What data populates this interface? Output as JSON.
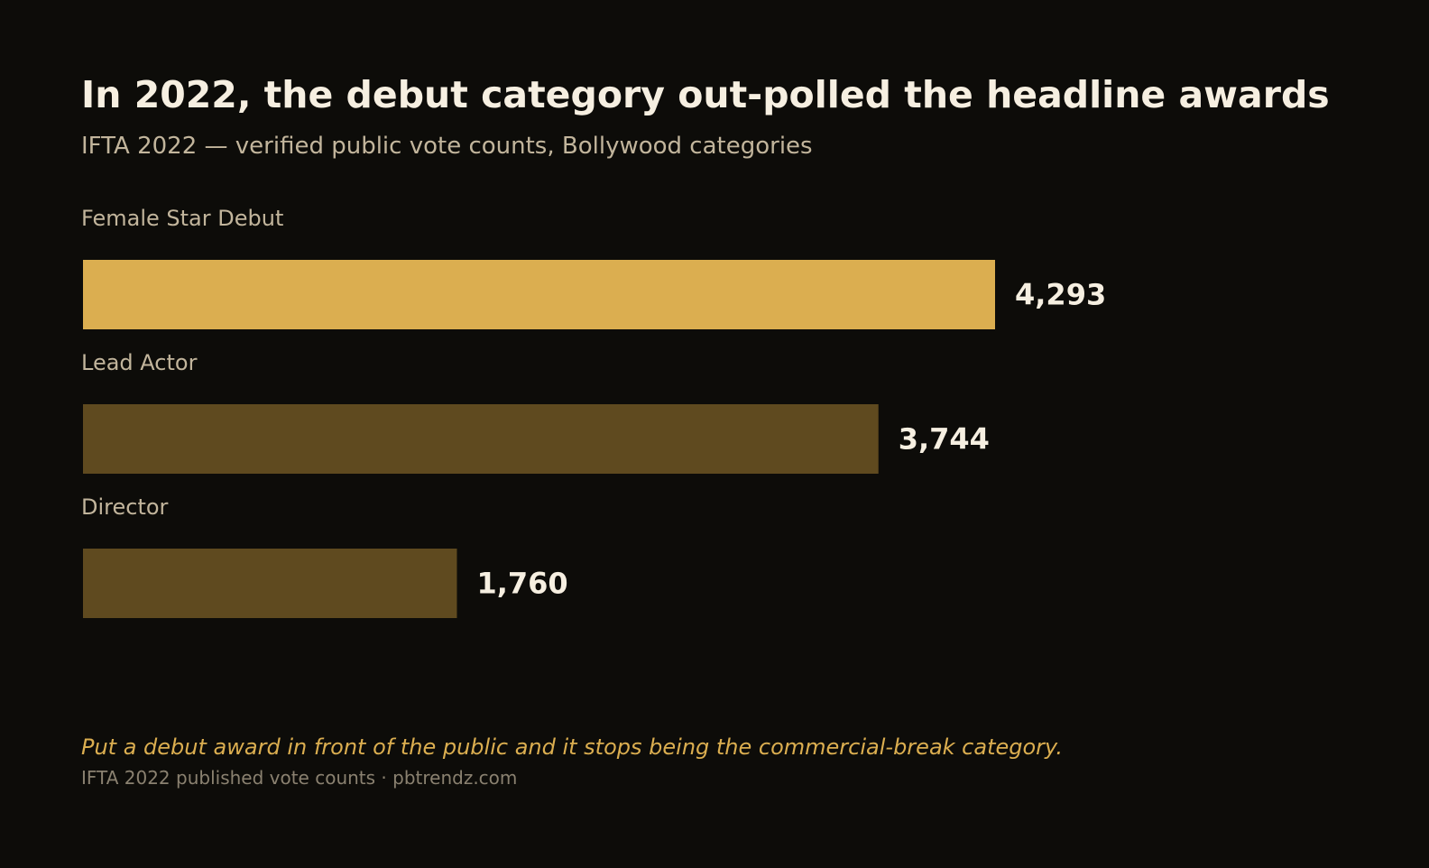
{
  "chart_data": {
    "type": "bar",
    "orientation": "horizontal",
    "title": "In 2022, the debut category out-polled the headline awards",
    "subtitle": "IFTA 2022 — verified public vote counts, Bollywood categories",
    "categories": [
      "Female Star Debut",
      "Lead Actor",
      "Director"
    ],
    "values": [
      4293,
      3744,
      1760
    ],
    "value_labels": [
      "4,293",
      "3,744",
      "1,760"
    ],
    "xlim": [
      0,
      4293
    ],
    "grid": false,
    "legend": "none",
    "colors": {
      "highlight": "#dbae50",
      "muted": "#5f4a1f",
      "background": "#0d0c09"
    },
    "highlight_index": 0
  },
  "annotation": "Put a debut award in front of the public and it stops being the commercial-break category.",
  "source": "IFTA 2022 published vote counts · pbtrendz.com"
}
